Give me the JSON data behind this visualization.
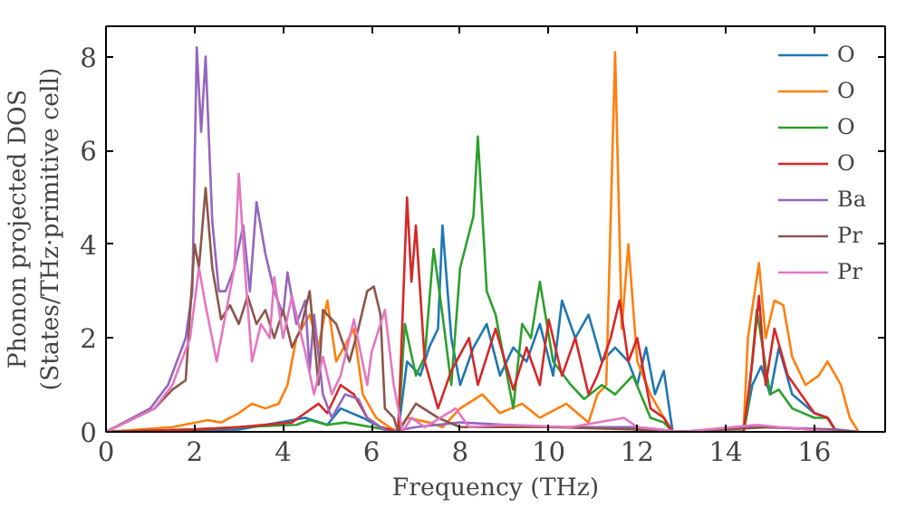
{
  "chart_data": {
    "type": "line",
    "xlabel": "Frequency (THz)",
    "ylabel": "Phonon projected DOS\n(States/THz·primitive cell)",
    "xlim": [
      0,
      17.6
    ],
    "ylim": [
      0,
      8.65
    ],
    "xticks": [
      0,
      2,
      4,
      6,
      8,
      10,
      12,
      14,
      16
    ],
    "yticks": [
      0,
      2,
      4,
      6,
      8
    ],
    "grid": false,
    "legend": "top right",
    "series": [
      {
        "name": "O",
        "color": "#1f77b4",
        "x": [
          0,
          3,
          4.5,
          5,
          5.3,
          5.8,
          6.2,
          6.6,
          6.8,
          7.1,
          7.3,
          7.5,
          7.6,
          7.8,
          8.0,
          8.3,
          8.6,
          8.9,
          9.2,
          9.5,
          9.8,
          10.1,
          10.3,
          10.6,
          10.9,
          11.2,
          11.5,
          11.8,
          12.0,
          12.2,
          12.4,
          12.6,
          12.8,
          14.4,
          14.6,
          14.8,
          15.0,
          15.2,
          15.5,
          16.0,
          16.3,
          16.5
        ],
        "values": [
          0,
          0.05,
          0.3,
          0.15,
          0.5,
          0.3,
          0.1,
          0,
          1.5,
          1.2,
          1.8,
          2.2,
          4.4,
          2.0,
          1.0,
          1.8,
          2.3,
          1.2,
          1.8,
          1.5,
          2.3,
          1.2,
          2.8,
          2.0,
          2.5,
          1.5,
          1.8,
          1.5,
          1.0,
          1.8,
          0.8,
          1.3,
          0,
          0,
          1.0,
          1.4,
          0.8,
          1.8,
          0.8,
          0.4,
          0.3,
          0
        ]
      },
      {
        "name": "O",
        "color": "#ff7f0e",
        "x": [
          0,
          1.5,
          2.3,
          2.6,
          3.0,
          3.3,
          3.6,
          3.9,
          4.1,
          4.3,
          4.6,
          4.8,
          5.0,
          5.2,
          5.6,
          5.8,
          6.1,
          6.4,
          6.6,
          6.8,
          7.3,
          7.6,
          8.0,
          8.5,
          8.9,
          9.4,
          9.8,
          10.4,
          10.9,
          11.1,
          11.3,
          11.5,
          11.65,
          11.8,
          12.0,
          12.3,
          12.6,
          12.8,
          14.4,
          14.5,
          14.75,
          14.9,
          15.1,
          15.3,
          15.5,
          15.8,
          16.1,
          16.3,
          16.6,
          16.8,
          17.0
        ],
        "values": [
          0,
          0.1,
          0.25,
          0.2,
          0.4,
          0.6,
          0.5,
          0.6,
          1.0,
          2.0,
          2.5,
          1.8,
          2.8,
          1.5,
          2.2,
          0.8,
          0.3,
          0.1,
          0,
          0.3,
          0.2,
          0.1,
          0.5,
          0.8,
          0.4,
          0.6,
          0.3,
          0.6,
          0.2,
          0.8,
          1.0,
          8.1,
          2.2,
          4.0,
          1.5,
          0.8,
          0.3,
          0,
          0,
          2.0,
          3.6,
          2.0,
          2.8,
          2.7,
          1.6,
          1.0,
          1.2,
          1.5,
          1.0,
          0.3,
          0
        ]
      },
      {
        "name": "O",
        "color": "#2ca02c",
        "x": [
          0,
          2,
          3,
          4.3,
          4.6,
          5,
          5.4,
          6,
          6.6,
          6.75,
          7.0,
          7.2,
          7.4,
          7.6,
          7.8,
          8.0,
          8.3,
          8.4,
          8.6,
          8.8,
          9.2,
          9.4,
          9.6,
          9.8,
          10.1,
          10.5,
          10.8,
          11.2,
          11.5,
          11.9,
          12.3,
          12.6,
          12.8,
          14.4,
          14.5,
          14.7,
          15.0,
          15.2,
          15.5,
          16.0,
          16.3,
          16.5
        ],
        "values": [
          0,
          0.05,
          0.1,
          0.15,
          0.25,
          0.15,
          0.2,
          0.1,
          0,
          2.3,
          1.2,
          1.6,
          3.9,
          2.5,
          1.0,
          3.5,
          4.6,
          6.3,
          3.0,
          2.5,
          0.5,
          2.3,
          2.0,
          3.2,
          1.5,
          1.0,
          0.7,
          1.0,
          0.8,
          1.2,
          0.3,
          0.2,
          0,
          0,
          0.5,
          2.6,
          0.8,
          0.9,
          0.5,
          0.3,
          0.3,
          0
        ]
      },
      {
        "name": "O",
        "color": "#d62728",
        "x": [
          0,
          2,
          3,
          4.2,
          4.5,
          4.8,
          5.0,
          5.3,
          5.6,
          5.9,
          6.2,
          6.6,
          6.8,
          6.9,
          7.0,
          7.2,
          7.5,
          7.8,
          8.2,
          8.4,
          8.8,
          9.2,
          9.5,
          9.8,
          10.0,
          10.3,
          10.6,
          10.9,
          11.1,
          11.4,
          11.6,
          11.8,
          12.0,
          12.3,
          12.6,
          12.8,
          14.4,
          14.6,
          14.75,
          14.9,
          15.1,
          15.4,
          16.0,
          16.3,
          16.5
        ],
        "values": [
          0,
          0.05,
          0.1,
          0.2,
          0.4,
          0.6,
          0.4,
          1.0,
          0.8,
          0.3,
          0.1,
          0,
          5.0,
          3.2,
          4.4,
          1.5,
          0.5,
          1.3,
          2.0,
          1.0,
          2.2,
          0.9,
          1.8,
          1.0,
          2.4,
          1.2,
          2.0,
          0.8,
          1.2,
          2.0,
          2.8,
          1.5,
          2.0,
          0.5,
          0.3,
          0,
          0,
          1.5,
          2.9,
          1.0,
          2.2,
          1.2,
          0.4,
          0.3,
          0
        ]
      },
      {
        "name": "Ba",
        "color": "#9467bd",
        "x": [
          0,
          1.0,
          1.4,
          1.8,
          1.95,
          2.05,
          2.15,
          2.25,
          2.4,
          2.55,
          2.7,
          2.9,
          3.1,
          3.25,
          3.4,
          3.6,
          3.8,
          4.0,
          4.1,
          4.3,
          4.5,
          4.6,
          4.7,
          4.9,
          5.1,
          5.4,
          5.7,
          5.9,
          6.2,
          6.4,
          7,
          8,
          10,
          12,
          13,
          14.7,
          16.5,
          17
        ],
        "values": [
          0,
          0.5,
          1,
          2,
          3,
          8.2,
          6.4,
          8.0,
          4.5,
          3.0,
          3.0,
          3.5,
          4.4,
          3.0,
          4.9,
          3.8,
          3.0,
          2.5,
          3.4,
          2.3,
          2.8,
          1.3,
          2.5,
          0.8,
          0.3,
          0.8,
          0.7,
          0.3,
          0.1,
          0,
          0.1,
          0.2,
          0.1,
          0.1,
          0,
          0.1,
          0.05,
          0
        ]
      },
      {
        "name": "Pr",
        "color": "#8c564b",
        "x": [
          0,
          1.1,
          1.5,
          1.8,
          2.0,
          2.1,
          2.25,
          2.4,
          2.6,
          2.8,
          3.0,
          3.2,
          3.4,
          3.6,
          3.8,
          4.0,
          4.2,
          4.4,
          4.6,
          4.8,
          4.9,
          5.2,
          5.5,
          5.7,
          5.9,
          6.05,
          6.2,
          6.3,
          6.5,
          6.6,
          7.0,
          7.5,
          8,
          10,
          12,
          13,
          15,
          17
        ],
        "values": [
          0,
          0.5,
          0.9,
          1.1,
          4.0,
          3.5,
          5.2,
          3.5,
          2.4,
          2.7,
          2.3,
          2.9,
          2.3,
          2.6,
          2.0,
          2.6,
          1.8,
          2.2,
          3.0,
          1.0,
          2.6,
          2.3,
          1.5,
          2.2,
          3.0,
          3.1,
          2.5,
          0.5,
          0.3,
          0,
          0.6,
          0.3,
          0.1,
          0.1,
          0.05,
          0,
          0.1,
          0
        ]
      },
      {
        "name": "Pr",
        "color": "#e377c2",
        "x": [
          0,
          1.1,
          1.5,
          1.9,
          2.1,
          2.25,
          2.5,
          2.7,
          2.9,
          3.0,
          3.15,
          3.3,
          3.5,
          3.7,
          3.8,
          4.0,
          4.2,
          4.5,
          4.7,
          4.9,
          5.1,
          5.3,
          5.6,
          5.9,
          6.0,
          6.3,
          6.5,
          6.7,
          6.9,
          7.2,
          7.9,
          8.2,
          9,
          10.5,
          11.7,
          12,
          13,
          14.7,
          15.2,
          16.5
        ],
        "values": [
          0,
          0.5,
          1.0,
          2.0,
          3.5,
          2.7,
          1.5,
          2.5,
          3.5,
          5.5,
          3.3,
          1.5,
          2.3,
          2.0,
          3.3,
          2.0,
          2.9,
          1.7,
          0.8,
          1.6,
          0.8,
          1.2,
          2.4,
          1.0,
          1.7,
          2.6,
          1.0,
          0,
          0.3,
          0.1,
          0.5,
          0.1,
          0.15,
          0.1,
          0.3,
          0.1,
          0,
          0.15,
          0.1,
          0
        ]
      }
    ]
  }
}
